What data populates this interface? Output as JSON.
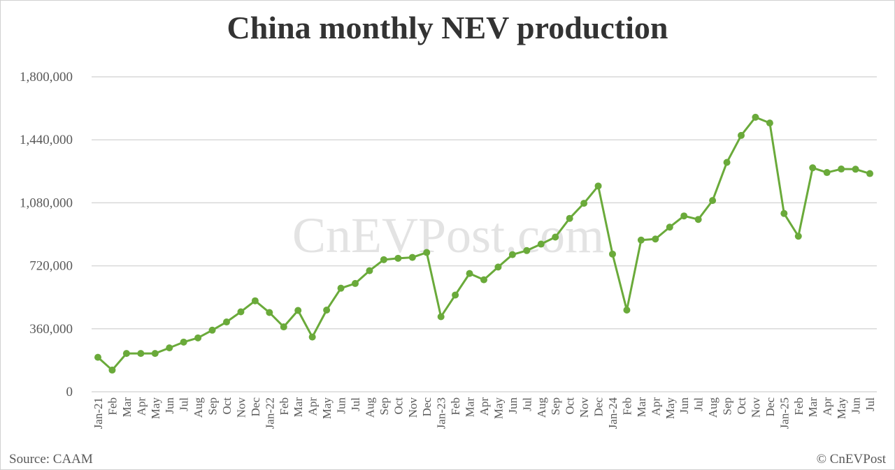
{
  "chart_data": {
    "type": "line",
    "title": "China monthly NEV production",
    "xlabel": "",
    "ylabel": "",
    "ylim": [
      0,
      1800000
    ],
    "yticks": [
      "0",
      "360,000",
      "720,000",
      "1,080,000",
      "1,440,000",
      "1,800,000"
    ],
    "grid": true,
    "legend": "none",
    "color": "#6aaa3a",
    "watermark": "CnEVPost.com",
    "categories": [
      "Jan-21",
      "Feb",
      "Mar",
      "Apr",
      "May",
      "Jun",
      "Jul",
      "Aug",
      "Sep",
      "Oct",
      "Nov",
      "Dec",
      "Jan-22",
      "Feb",
      "Mar",
      "Apr",
      "May",
      "Jun",
      "Jul",
      "Aug",
      "Sep",
      "Oct",
      "Nov",
      "Dec",
      "Jan-23",
      "Feb",
      "Mar",
      "Apr",
      "May",
      "Jun",
      "Jul",
      "Aug",
      "Sep",
      "Oct",
      "Nov",
      "Dec",
      "Jan-24",
      "Feb",
      "Mar",
      "Apr",
      "May",
      "Jun",
      "Jul",
      "Aug",
      "Sep",
      "Oct",
      "Nov",
      "Dec",
      "Jan-25",
      "Feb",
      "Mar",
      "Apr",
      "May",
      "Jun",
      "Jul"
    ],
    "values": [
      197000,
      124000,
      219000,
      219000,
      219000,
      251000,
      284000,
      308000,
      352000,
      399000,
      457000,
      520000,
      453000,
      371000,
      465000,
      313000,
      467000,
      592000,
      619000,
      692000,
      755000,
      763000,
      768000,
      796000,
      429000,
      553000,
      676000,
      640000,
      713000,
      784000,
      807000,
      844000,
      884000,
      991000,
      1077000,
      1176000,
      787000,
      467000,
      867000,
      873000,
      941000,
      1005000,
      985000,
      1093000,
      1311000,
      1465000,
      1569000,
      1536000,
      1019000,
      889000,
      1280000,
      1253000,
      1273000,
      1272000,
      1247000
    ]
  },
  "footer": {
    "source": "Source: CAAM",
    "copyright": "© CnEVPost"
  }
}
